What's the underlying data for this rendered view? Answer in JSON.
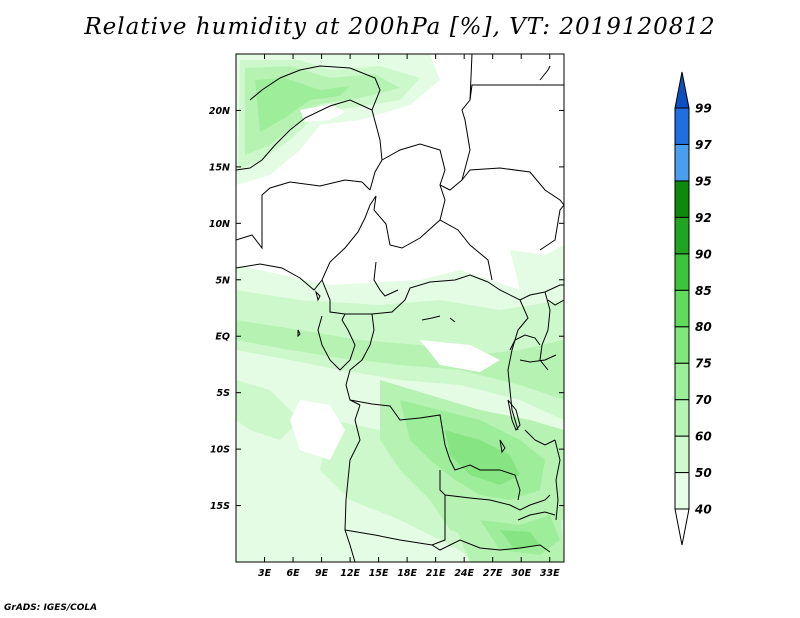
{
  "title": "Relative humidity at 200hPa [%], VT: 2019120812",
  "footer": "GrADS: IGES/COLA",
  "map": {
    "lon_range": [
      0,
      34.5
    ],
    "lat_range": [
      -20,
      25
    ],
    "lon_ticks": [
      "3E",
      "6E",
      "9E",
      "12E",
      "15E",
      "18E",
      "21E",
      "24E",
      "27E",
      "30E",
      "33E"
    ],
    "lat_ticks": [
      "20N",
      "15N",
      "10N",
      "5N",
      "EQ",
      "5S",
      "10S",
      "15S"
    ]
  },
  "colorbar": {
    "levels": [
      "40",
      "50",
      "60",
      "70",
      "75",
      "80",
      "85",
      "90",
      "92",
      "95",
      "97",
      "99"
    ],
    "colors": [
      "#ffffff",
      "#e6fde6",
      "#cdf9cb",
      "#b4f5b1",
      "#9aef98",
      "#80e77c",
      "#5fdc5c",
      "#3cc43c",
      "#1fa51f",
      "#0c8a0c",
      "#4a9ef0",
      "#1f6fe0",
      "#0d4fc0"
    ]
  }
}
